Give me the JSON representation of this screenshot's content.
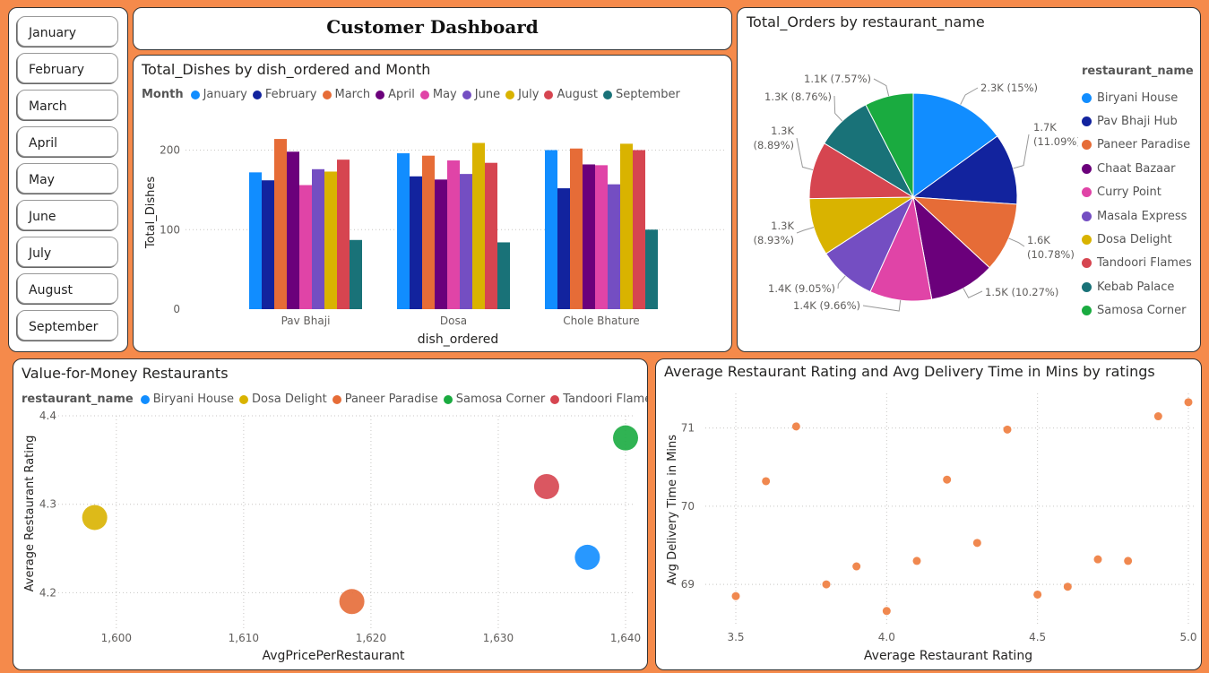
{
  "slicer": {
    "months": [
      "January",
      "February",
      "March",
      "April",
      "May",
      "June",
      "July",
      "August",
      "September"
    ]
  },
  "dashboard": {
    "title": "Customer Dashboard"
  },
  "bar_chart": {
    "title": "Total_Dishes by dish_ordered and Month",
    "legend_title": "Month"
  },
  "pie_chart": {
    "title": "Total_Orders by restaurant_name",
    "legend_title": "restaurant_name",
    "labels": [
      "2.3K (15%)",
      "1.7K\n(11.09%)",
      "1.6K\n(10.78%)",
      "1.5K (10.27%)",
      "1.4K (9.66%)",
      "1.4K (9.05%)",
      "1.3K\n(8.93%)",
      "1.3K\n(8.89%)",
      "1.3K (8.76%)",
      "1.1K (7.57%)"
    ]
  },
  "bubble_chart": {
    "title": "Value-for-Money Restaurants",
    "legend_title": "restaurant_name"
  },
  "scatter_chart": {
    "title": "Average Restaurant Rating and Avg Delivery Time in Mins by ratings"
  },
  "chart_data": [
    {
      "type": "bar",
      "title": "Total_Dishes by dish_ordered and Month",
      "xlabel": "dish_ordered",
      "ylabel": "Total_Dishes",
      "categories": [
        "Pav Bhaji",
        "Dosa",
        "Chole Bhature"
      ],
      "yticks": [
        0,
        100,
        200
      ],
      "ylim": [
        0,
        240
      ],
      "grid": true,
      "legend_position": "top",
      "series": [
        {
          "name": "January",
          "color": "#118DFF",
          "values": [
            172,
            196,
            200
          ]
        },
        {
          "name": "February",
          "color": "#12239E",
          "values": [
            162,
            167,
            152
          ]
        },
        {
          "name": "March",
          "color": "#E66C37",
          "values": [
            214,
            193,
            202
          ]
        },
        {
          "name": "April",
          "color": "#6B007B",
          "values": [
            198,
            163,
            182
          ]
        },
        {
          "name": "May",
          "color": "#E044A7",
          "values": [
            156,
            187,
            181
          ]
        },
        {
          "name": "June",
          "color": "#744EC2",
          "values": [
            176,
            170,
            157
          ]
        },
        {
          "name": "July",
          "color": "#D9B300",
          "values": [
            173,
            209,
            208
          ]
        },
        {
          "name": "August",
          "color": "#D64550",
          "values": [
            188,
            184,
            200
          ]
        },
        {
          "name": "September",
          "color": "#197278",
          "values": [
            87,
            84,
            100
          ]
        }
      ]
    },
    {
      "type": "pie",
      "title": "Total_Orders by restaurant_name",
      "legend_title": "restaurant_name",
      "legend_position": "right",
      "slices": [
        {
          "name": "Biryani House",
          "value": 2300,
          "percent": 15.0,
          "color": "#118DFF"
        },
        {
          "name": "Pav Bhaji Hub",
          "value": 1700,
          "percent": 11.09,
          "color": "#12239E"
        },
        {
          "name": "Paneer Paradise",
          "value": 1600,
          "percent": 10.78,
          "color": "#E66C37"
        },
        {
          "name": "Chaat Bazaar",
          "value": 1500,
          "percent": 10.27,
          "color": "#6B007B"
        },
        {
          "name": "Curry Point",
          "value": 1400,
          "percent": 9.66,
          "color": "#E044A7"
        },
        {
          "name": "Masala Express",
          "value": 1400,
          "percent": 9.05,
          "color": "#744EC2"
        },
        {
          "name": "Dosa Delight",
          "value": 1300,
          "percent": 8.93,
          "color": "#D9B300"
        },
        {
          "name": "Tandoori Flames",
          "value": 1300,
          "percent": 8.89,
          "color": "#D64550"
        },
        {
          "name": "Kebab Palace",
          "value": 1300,
          "percent": 8.76,
          "color": "#197278"
        },
        {
          "name": "Samosa Corner",
          "value": 1100,
          "percent": 7.57,
          "color": "#1AAB40"
        }
      ]
    },
    {
      "type": "scatter",
      "title": "Value-for-Money Restaurants",
      "xlabel": "AvgPricePerRestaurant",
      "ylabel": "Average Restaurant Rating",
      "xlim": [
        1596,
        1640
      ],
      "ylim": [
        4.17,
        4.4
      ],
      "xticks": [
        "1,600",
        "1,610",
        "1,620",
        "1,630",
        "1,640"
      ],
      "yticks": [
        "4.2",
        "4.3",
        "4.4"
      ],
      "legend_position": "top",
      "series": [
        {
          "name": "Biryani House",
          "color": "#118DFF",
          "x": 1637,
          "y": 4.24
        },
        {
          "name": "Dosa Delight",
          "color": "#D9B300",
          "x": 1598.3,
          "y": 4.285
        },
        {
          "name": "Paneer Paradise",
          "color": "#E66C37",
          "x": 1618.5,
          "y": 4.19
        },
        {
          "name": "Samosa Corner",
          "color": "#1AAB40",
          "x": 1640,
          "y": 4.375
        },
        {
          "name": "Tandoori Flames",
          "color": "#D64550",
          "x": 1633.8,
          "y": 4.32
        }
      ]
    },
    {
      "type": "scatter",
      "title": "Average Restaurant Rating and Avg Delivery Time in Mins by ratings",
      "xlabel": "Average Restaurant Rating",
      "ylabel": "Avg Delivery Time in Mins",
      "xlim": [
        3.5,
        5.0
      ],
      "ylim": [
        68.6,
        71.5
      ],
      "xticks": [
        "3.5",
        "4.0",
        "4.5",
        "5.0"
      ],
      "yticks": [
        "69",
        "70",
        "71"
      ],
      "color": "#F0884F",
      "points": [
        {
          "x": 3.5,
          "y": 68.85
        },
        {
          "x": 3.6,
          "y": 70.32
        },
        {
          "x": 3.7,
          "y": 71.02
        },
        {
          "x": 3.8,
          "y": 69.0
        },
        {
          "x": 3.9,
          "y": 69.23
        },
        {
          "x": 4.0,
          "y": 68.66
        },
        {
          "x": 4.1,
          "y": 69.3
        },
        {
          "x": 4.2,
          "y": 70.34
        },
        {
          "x": 4.3,
          "y": 69.53
        },
        {
          "x": 4.4,
          "y": 70.98
        },
        {
          "x": 4.5,
          "y": 68.87
        },
        {
          "x": 4.6,
          "y": 68.97
        },
        {
          "x": 4.7,
          "y": 69.32
        },
        {
          "x": 4.8,
          "y": 69.3
        },
        {
          "x": 4.9,
          "y": 71.15
        },
        {
          "x": 5.0,
          "y": 71.33
        }
      ]
    }
  ]
}
